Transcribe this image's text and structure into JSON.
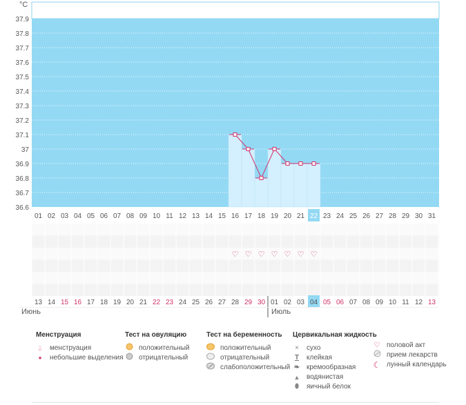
{
  "chart_data": {
    "type": "line",
    "ylabel": "°C",
    "ylim": [
      36.6,
      37.9
    ],
    "yticks": [
      "36.6",
      "36.7",
      "36.8",
      "36.9",
      "37",
      "37.1",
      "37.2",
      "37.3",
      "37.4",
      "37.5",
      "37.6",
      "37.7",
      "37.8",
      "37.9"
    ],
    "x_top": [
      "01",
      "02",
      "03",
      "04",
      "05",
      "06",
      "07",
      "08",
      "09",
      "10",
      "11",
      "12",
      "13",
      "14",
      "15",
      "16",
      "17",
      "18",
      "19",
      "20",
      "21",
      "22",
      "23",
      "24",
      "25",
      "26",
      "27",
      "28",
      "29",
      "30",
      "31"
    ],
    "x_bottom": [
      "13",
      "14",
      "15",
      "16",
      "17",
      "18",
      "19",
      "20",
      "21",
      "22",
      "23",
      "24",
      "25",
      "26",
      "27",
      "28",
      "29",
      "30",
      "01",
      "02",
      "03",
      "04",
      "05",
      "06",
      "07",
      "08",
      "09",
      "10",
      "11",
      "12",
      "13"
    ],
    "x_bottom_red": [
      2,
      3,
      9,
      10,
      16,
      17,
      22,
      23,
      30
    ],
    "highlight_index": 21,
    "months": [
      "Июнь",
      "Июль"
    ],
    "month_split_index": 18,
    "series": [
      {
        "start_index": 15,
        "values": [
          37.1,
          37.0,
          36.8,
          37.0,
          36.9,
          36.9,
          36.9
        ]
      }
    ],
    "heart_indices": [
      15,
      16,
      17,
      18,
      19,
      20,
      21
    ],
    "colors": {
      "background": "#93d9f4",
      "bar": "#d4effd",
      "line": "#d0306a",
      "red_text": "#d0306a",
      "highlight": "#93d9f4"
    }
  },
  "legend": {
    "menstruation": {
      "title": "Менструация",
      "items": [
        "менструация",
        "небольшие выделения"
      ]
    },
    "ovulation": {
      "title": "Тест на овуляцию",
      "items": [
        "положительный",
        "отрицательный"
      ]
    },
    "pregnancy": {
      "title": "Тест на беременность",
      "items": [
        "положительный",
        "отрицательный",
        "слабоположительный"
      ]
    },
    "cervical": {
      "title": "Цервикальная жидкость",
      "items": [
        "сухо",
        "клейкая",
        "кремообразная",
        "водянистая",
        "яичный белок"
      ]
    },
    "other": {
      "items": [
        "половой акт",
        "прием лекарств",
        "лунный календарь"
      ]
    }
  }
}
